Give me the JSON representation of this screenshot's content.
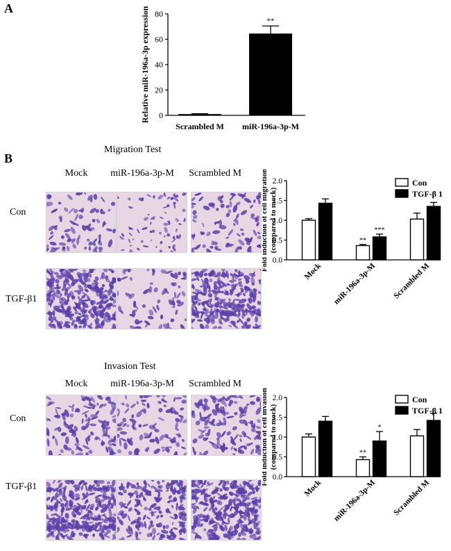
{
  "panels": {
    "a_label": "A",
    "b_label": "B"
  },
  "migration": {
    "title": "Migration Test",
    "columns": [
      "Mock",
      "miR-196a-3p-M",
      "Scrambled M"
    ],
    "rows": [
      "Con",
      "TGF-β1"
    ]
  },
  "invasion": {
    "title": "Invasion Test",
    "columns": [
      "Mock",
      "miR-196a-3p-M",
      "Scrambled M"
    ],
    "rows": [
      "Con",
      "TGF-β1"
    ]
  },
  "legend": {
    "con": "Con",
    "tgf": "TGF-β 1"
  },
  "colors": {
    "bar_fill": "#000000",
    "open_fill": "#ffffff",
    "micro_bg": "#e8d6e4",
    "cell": "#5a3fa8"
  },
  "chart_data": [
    {
      "id": "A",
      "type": "bar",
      "categories": [
        "Scrambled M",
        "miR-196a-3p-M"
      ],
      "values": [
        1,
        64.5
      ],
      "errors": [
        0.3,
        6
      ],
      "annotations": [
        "",
        "**"
      ],
      "ylabel": "Relative miR-196a-3p expression",
      "ylim": [
        0,
        80
      ],
      "yticks": [
        0,
        20,
        40,
        60,
        80
      ]
    },
    {
      "id": "B-migration",
      "type": "bar",
      "categories": [
        "Mock",
        "miR-196a-3p-M",
        "Scrambled M"
      ],
      "series": [
        {
          "name": "Con",
          "values": [
            1.0,
            0.36,
            1.03
          ],
          "errors": [
            0.04,
            0.03,
            0.15
          ],
          "annotations": [
            "",
            "**",
            ""
          ]
        },
        {
          "name": "TGF-β 1",
          "values": [
            1.43,
            0.58,
            1.35
          ],
          "errors": [
            0.11,
            0.07,
            0.1
          ],
          "annotations": [
            "",
            "***",
            ""
          ]
        }
      ],
      "ylabel": "Fold induction of cell migration (compared to mock)",
      "ylim": [
        0,
        2.0
      ],
      "yticks": [
        "0.0",
        "0.5",
        "1.0",
        "1.5",
        "2.0"
      ]
    },
    {
      "id": "B-invasion",
      "type": "bar",
      "categories": [
        "Mock",
        "miR-196a-3p-M",
        "Scrambled M"
      ],
      "series": [
        {
          "name": "Con",
          "values": [
            1.0,
            0.43,
            1.03
          ],
          "errors": [
            0.08,
            0.07,
            0.16
          ],
          "annotations": [
            "",
            "**",
            ""
          ]
        },
        {
          "name": "TGF-β 1",
          "values": [
            1.4,
            0.9,
            1.42
          ],
          "errors": [
            0.12,
            0.24,
            0.18
          ],
          "annotations": [
            "",
            "*",
            ""
          ]
        }
      ],
      "ylabel": "Fold induction of cell invasion (compared to mock)",
      "ylim": [
        0,
        2.0
      ],
      "yticks": [
        "0.0",
        "0.5",
        "1.0",
        "1.5",
        "2.0"
      ]
    }
  ]
}
